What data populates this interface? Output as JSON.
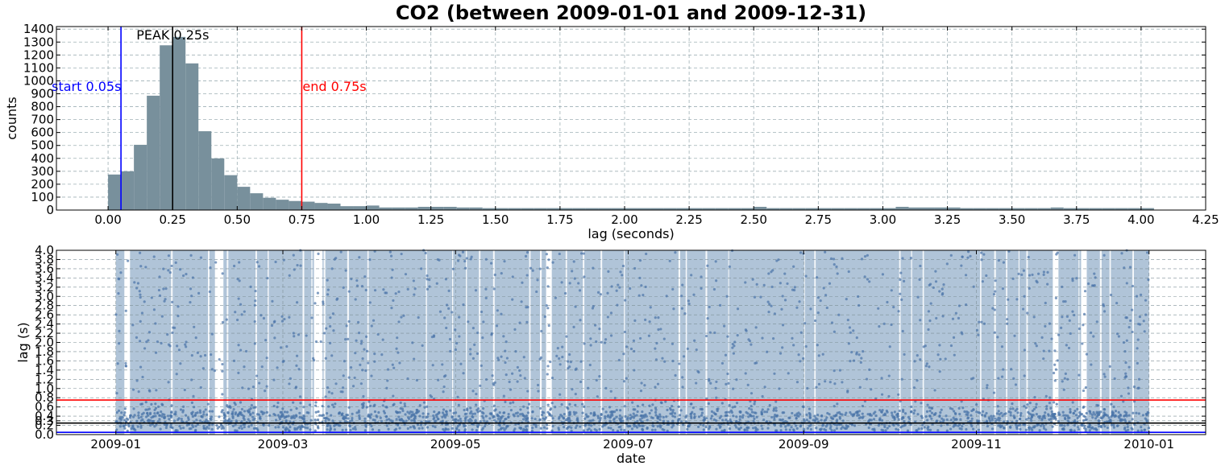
{
  "chart_data": [
    {
      "type": "bar",
      "title": "CO2 (between 2009-01-01 and 2009-12-31)",
      "xlabel": "lag (seconds)",
      "ylabel": "counts",
      "xlim": [
        -0.2,
        4.25
      ],
      "ylim": [
        0,
        1420
      ],
      "xticks": [
        "0.00",
        "0.25",
        "0.50",
        "0.75",
        "1.00",
        "1.25",
        "1.50",
        "1.75",
        "2.00",
        "2.25",
        "2.50",
        "2.75",
        "3.00",
        "3.25",
        "3.50",
        "3.75",
        "4.00",
        "4.25"
      ],
      "yticks": [
        "0",
        "100",
        "200",
        "300",
        "400",
        "500",
        "600",
        "700",
        "800",
        "900",
        "1000",
        "1100",
        "1200",
        "1300",
        "1400"
      ],
      "grid": true,
      "bin_width": 0.05,
      "bin_starts": [
        0.0,
        0.05,
        0.1,
        0.15,
        0.2,
        0.25,
        0.3,
        0.35,
        0.4,
        0.45,
        0.5,
        0.55,
        0.6,
        0.65,
        0.7,
        0.75,
        0.8,
        0.85,
        0.9,
        0.95,
        1.0,
        1.05,
        1.1,
        1.15,
        1.2,
        1.25,
        1.3,
        1.35,
        1.4,
        1.45,
        1.5,
        1.55,
        1.6,
        1.65,
        1.7,
        1.75,
        1.8,
        1.85,
        1.9,
        1.95,
        2.0,
        2.05,
        2.1,
        2.15,
        2.2,
        2.25,
        2.3,
        2.35,
        2.4,
        2.45,
        2.5,
        2.55,
        2.6,
        2.65,
        2.7,
        2.75,
        2.8,
        2.85,
        2.9,
        2.95,
        3.0,
        3.05,
        3.1,
        3.15,
        3.2,
        3.25,
        3.3,
        3.35,
        3.4,
        3.45,
        3.5,
        3.55,
        3.6,
        3.65,
        3.7,
        3.75,
        3.8,
        3.85,
        3.9,
        3.95,
        4.0
      ],
      "values": [
        275,
        300,
        505,
        885,
        1275,
        1340,
        1135,
        610,
        400,
        270,
        180,
        130,
        95,
        80,
        70,
        65,
        55,
        50,
        30,
        30,
        35,
        20,
        20,
        20,
        25,
        25,
        25,
        20,
        20,
        15,
        15,
        15,
        15,
        15,
        15,
        15,
        15,
        15,
        15,
        15,
        15,
        15,
        15,
        15,
        15,
        15,
        15,
        15,
        15,
        15,
        25,
        15,
        15,
        15,
        15,
        15,
        15,
        15,
        15,
        15,
        15,
        25,
        20,
        20,
        20,
        20,
        15,
        15,
        15,
        15,
        15,
        15,
        15,
        20,
        15,
        15,
        15,
        15,
        15,
        15,
        15
      ],
      "bar_color": "#78909c",
      "vlines": [
        {
          "x": 0.05,
          "label": "start 0.05s",
          "color": "#0000ff"
        },
        {
          "x": 0.25,
          "label": "PEAK 0.25s",
          "color": "#000000"
        },
        {
          "x": 0.75,
          "label": "end 0.75s",
          "color": "#ff0000"
        }
      ]
    },
    {
      "type": "scatter",
      "xlabel": "date",
      "ylabel": "lag (s)",
      "xlim": [
        "2008-12-11",
        "2010-01-21"
      ],
      "ylim": [
        0.0,
        4.0
      ],
      "xticks": [
        "2009-01",
        "2009-03",
        "2009-05",
        "2009-07",
        "2009-09",
        "2009-11",
        "2010-01"
      ],
      "yticks": [
        "0.0",
        "0.2",
        "0.3",
        "0.4",
        "0.6",
        "0.8",
        "1.0",
        "1.2",
        "1.4",
        "1.6",
        "1.8",
        "2.0",
        "2.2",
        "2.4",
        "2.6",
        "2.8",
        "3.0",
        "3.2",
        "3.4",
        "3.6",
        "3.8",
        "4.0"
      ],
      "grid": true,
      "coverage_color": "#b0c4d8",
      "point_color": "#4a74a8",
      "coverage_gaps": [
        [
          "2009-01-04",
          "2009-01-06"
        ],
        [
          "2009-02-05",
          "2009-02-08"
        ],
        [
          "2009-03-12",
          "2009-03-15"
        ],
        [
          "2009-06-02",
          "2009-06-04"
        ],
        [
          "2009-11-28",
          "2009-11-30"
        ],
        [
          "2009-12-08",
          "2009-12-10"
        ]
      ],
      "hlines": [
        {
          "y": 0.05,
          "color": "#0000ff"
        },
        {
          "y": 0.25,
          "color": "#000000"
        },
        {
          "y": 0.75,
          "color": "#ff0000"
        }
      ]
    }
  ]
}
